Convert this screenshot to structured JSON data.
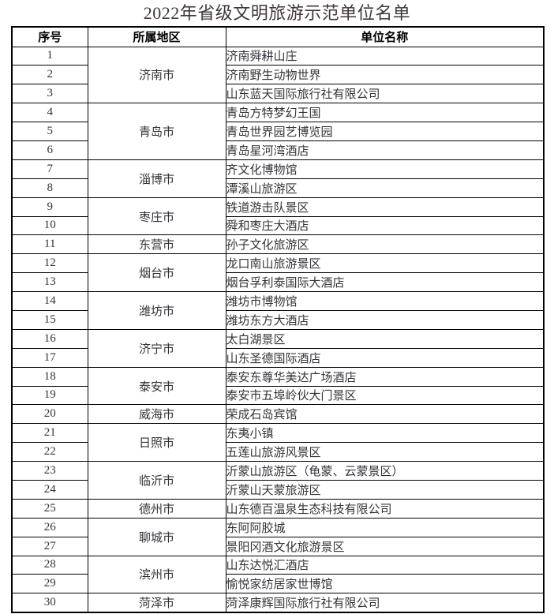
{
  "title": "2022年省级文明旅游示范单位名单",
  "colors": {
    "title_text": "#413737",
    "body_text": "#33343a",
    "header_text": "#000000",
    "border": "#000000",
    "background": "#ffffff"
  },
  "table": {
    "headers": [
      "序号",
      "所属地区",
      "单位名称"
    ],
    "groups": [
      {
        "region": "济南市",
        "units": [
          {
            "no": "1",
            "name": "济南舜耕山庄"
          },
          {
            "no": "2",
            "name": "济南野生动物世界"
          },
          {
            "no": "3",
            "name": "山东蓝天国际旅行社有限公司"
          }
        ]
      },
      {
        "region": "青岛市",
        "units": [
          {
            "no": "4",
            "name": "青岛方特梦幻王国"
          },
          {
            "no": "5",
            "name": "青岛世界园艺博览园"
          },
          {
            "no": "6",
            "name": "青岛星河湾酒店"
          }
        ]
      },
      {
        "region": "淄博市",
        "units": [
          {
            "no": "7",
            "name": "齐文化博物馆"
          },
          {
            "no": "8",
            "name": "潭溪山旅游区"
          }
        ]
      },
      {
        "region": "枣庄市",
        "units": [
          {
            "no": "9",
            "name": "铁道游击队景区"
          },
          {
            "no": "10",
            "name": "舜和枣庄大酒店"
          }
        ]
      },
      {
        "region": "东营市",
        "units": [
          {
            "no": "11",
            "name": "孙子文化旅游区"
          }
        ]
      },
      {
        "region": "烟台市",
        "units": [
          {
            "no": "12",
            "name": "龙口南山旅游景区"
          },
          {
            "no": "13",
            "name": "烟台孚利泰国际大酒店"
          }
        ]
      },
      {
        "region": "潍坊市",
        "units": [
          {
            "no": "14",
            "name": "潍坊市博物馆"
          },
          {
            "no": "15",
            "name": "潍坊东方大酒店"
          }
        ]
      },
      {
        "region": "济宁市",
        "units": [
          {
            "no": "16",
            "name": "太白湖景区"
          },
          {
            "no": "17",
            "name": "山东圣德国际酒店"
          }
        ]
      },
      {
        "region": "泰安市",
        "units": [
          {
            "no": "18",
            "name": "泰安东尊华美达广场酒店"
          },
          {
            "no": "19",
            "name": "泰安市五埠岭伙大门景区"
          }
        ]
      },
      {
        "region": "威海市",
        "units": [
          {
            "no": "20",
            "name": "荣成石岛宾馆"
          }
        ]
      },
      {
        "region": "日照市",
        "units": [
          {
            "no": "21",
            "name": "东夷小镇"
          },
          {
            "no": "22",
            "name": "五莲山旅游风景区"
          }
        ]
      },
      {
        "region": "临沂市",
        "units": [
          {
            "no": "23",
            "name": "沂蒙山旅游区（龟蒙、云蒙景区）"
          },
          {
            "no": "24",
            "name": "沂蒙山天蒙旅游区"
          }
        ]
      },
      {
        "region": "德州市",
        "units": [
          {
            "no": "25",
            "name": "山东德百温泉生态科技有限公司"
          }
        ]
      },
      {
        "region": "聊城市",
        "units": [
          {
            "no": "26",
            "name": "东阿阿胶城"
          },
          {
            "no": "27",
            "name": "景阳冈酒文化旅游景区"
          }
        ]
      },
      {
        "region": "滨州市",
        "units": [
          {
            "no": "28",
            "name": "山东达悦汇酒店"
          },
          {
            "no": "29",
            "name": "愉悦家纺居家世博馆"
          }
        ]
      },
      {
        "region": "菏泽市",
        "units": [
          {
            "no": "30",
            "name": "菏泽康辉国际旅行社有限公司"
          }
        ]
      }
    ]
  }
}
